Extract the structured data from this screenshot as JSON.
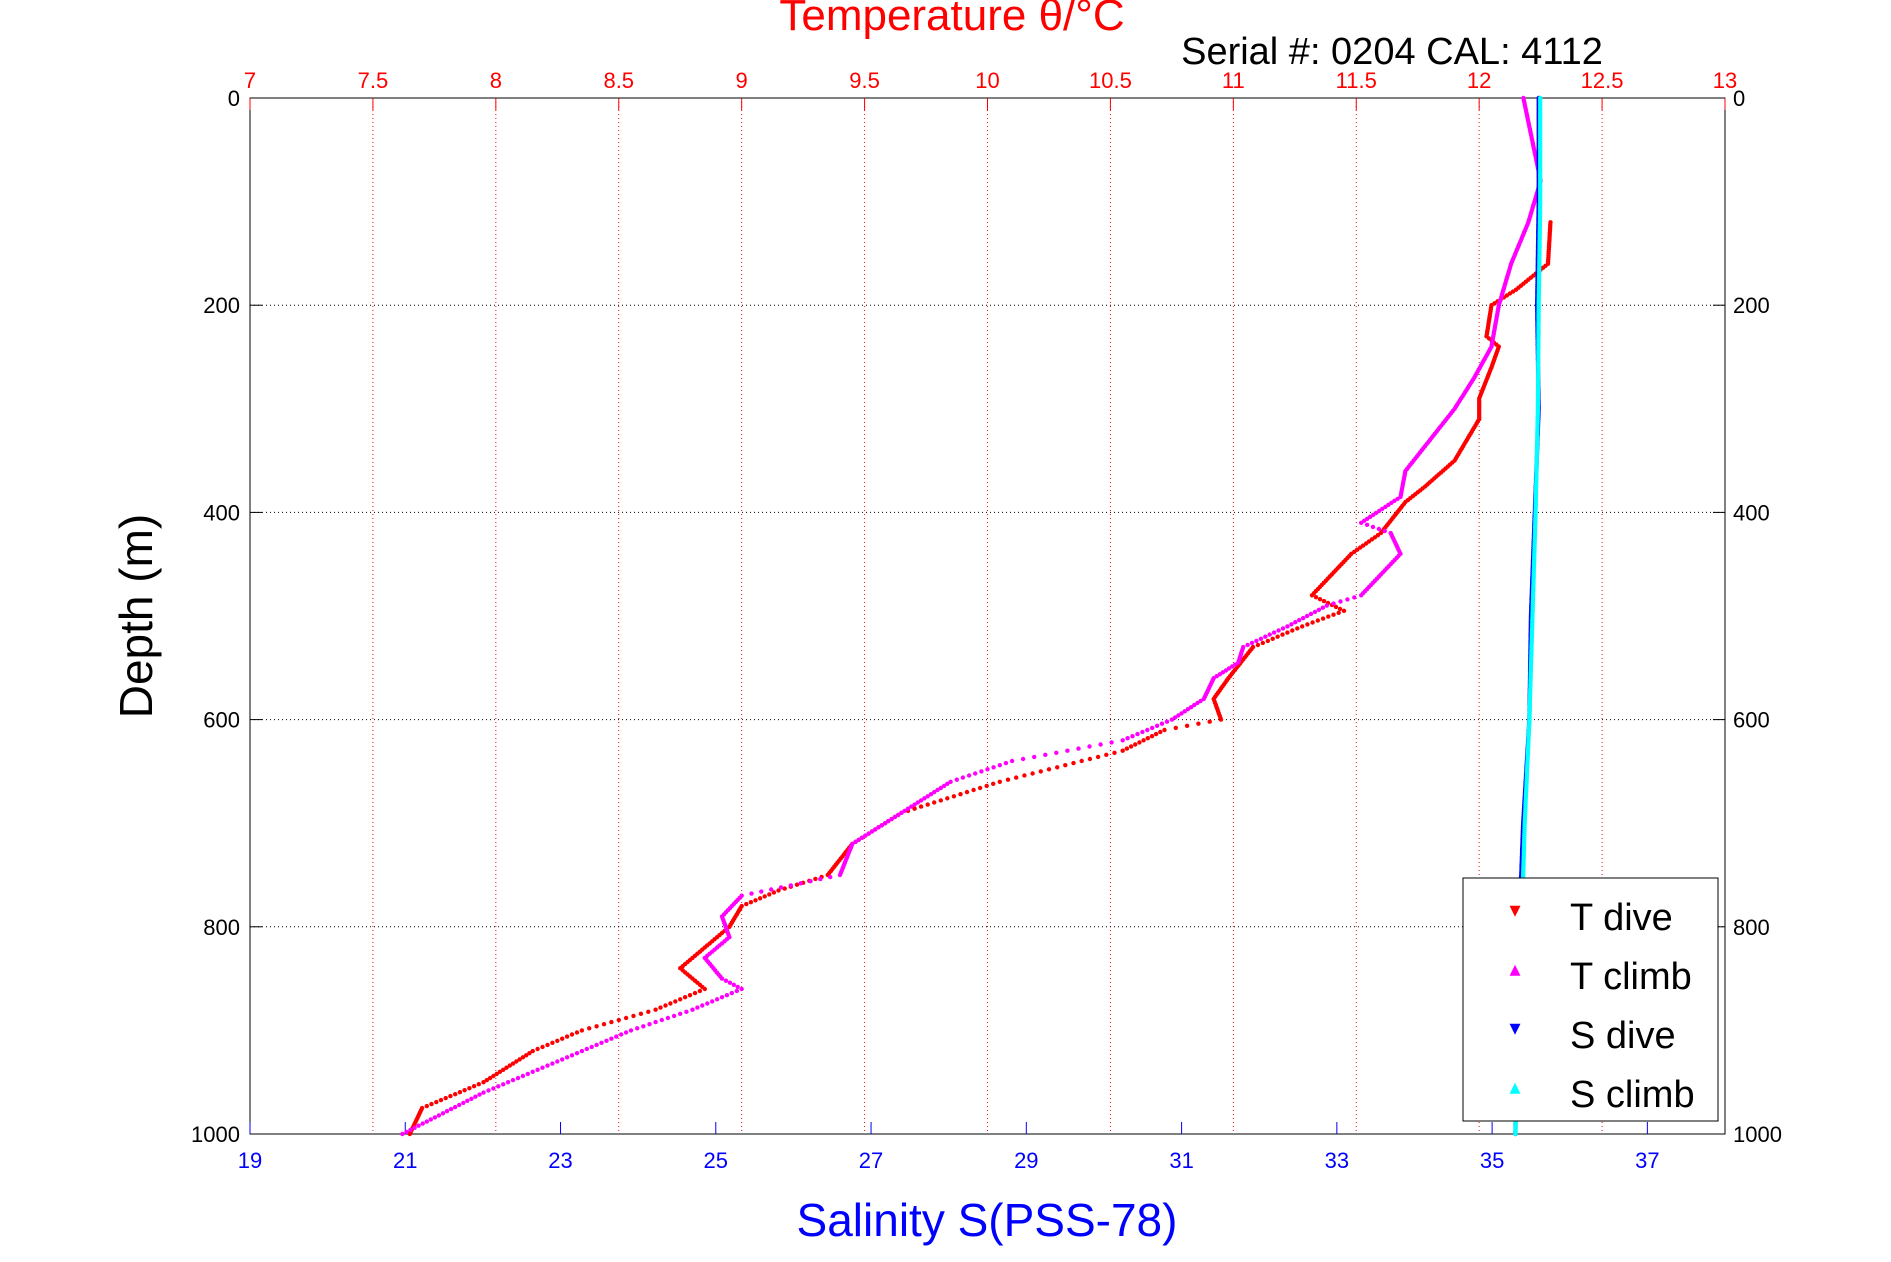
{
  "chart_data": {
    "type": "scatter",
    "title": "Temperature θ/°C",
    "subtitle": "Serial #: 0204  CAL: 4112",
    "xlabel": "Salinity S(PSS-78)",
    "ylabel": "Depth (m)",
    "temperature_axis": {
      "range": [
        7,
        13
      ],
      "tick_labels": [
        "7",
        "7.5",
        "8",
        "8.5",
        "9",
        "9.5",
        "10",
        "10.5",
        "11",
        "11.5",
        "12",
        "12.5",
        "13"
      ],
      "color": "#ff0000",
      "grid": true
    },
    "salinity_axis": {
      "range": [
        19,
        38
      ],
      "tick_labels": [
        "19",
        "21",
        "23",
        "25",
        "27",
        "29",
        "31",
        "33",
        "35",
        "37"
      ],
      "color": "#0000ff"
    },
    "depth_axis": {
      "range": [
        0,
        1000
      ],
      "reversed": true,
      "tick_labels": [
        "0",
        "200",
        "400",
        "600",
        "800",
        "1000"
      ],
      "grid": true
    },
    "legend": {
      "placement": "bottom-right",
      "entries": [
        "T dive",
        "T climb",
        "S dive",
        "S climb"
      ]
    },
    "series": [
      {
        "name": "T dive",
        "axis": "temperature",
        "color": "#ff0000",
        "depth": [
          120,
          160,
          185,
          200,
          230,
          240,
          260,
          290,
          310,
          350,
          375,
          390,
          405,
          420,
          440,
          460,
          480,
          495,
          510,
          530,
          560,
          580,
          600,
          610,
          630,
          660,
          690,
          720,
          750,
          765,
          780,
          800,
          820,
          840,
          860,
          880,
          900,
          920,
          950,
          975,
          1000
        ],
        "values": [
          12.29,
          12.28,
          12.15,
          12.05,
          12.03,
          12.08,
          12.05,
          12.0,
          12.0,
          11.9,
          11.78,
          11.7,
          11.65,
          11.6,
          11.48,
          11.4,
          11.32,
          11.45,
          11.28,
          11.08,
          10.98,
          10.92,
          10.95,
          10.72,
          10.55,
          10.05,
          9.65,
          9.45,
          9.35,
          9.15,
          9.0,
          8.95,
          8.85,
          8.75,
          8.85,
          8.65,
          8.35,
          8.15,
          7.95,
          7.7,
          7.65
        ]
      },
      {
        "name": "T climb",
        "axis": "temperature",
        "color": "#ff00ff",
        "depth": [
          0,
          80,
          120,
          160,
          200,
          240,
          270,
          300,
          330,
          360,
          385,
          410,
          420,
          440,
          460,
          480,
          490,
          510,
          530,
          545,
          560,
          580,
          600,
          620,
          640,
          660,
          690,
          720,
          750,
          770,
          790,
          810,
          830,
          850,
          860,
          880,
          900,
          930,
          960,
          1000
        ],
        "values": [
          12.18,
          12.25,
          12.2,
          12.13,
          12.08,
          12.05,
          11.98,
          11.9,
          11.8,
          11.7,
          11.68,
          11.52,
          11.64,
          11.68,
          11.6,
          11.52,
          11.38,
          11.22,
          11.04,
          11.02,
          10.92,
          10.88,
          10.75,
          10.55,
          10.1,
          9.85,
          9.65,
          9.45,
          9.4,
          9.0,
          8.92,
          8.95,
          8.85,
          8.92,
          9.0,
          8.8,
          8.55,
          8.25,
          7.95,
          7.62
        ]
      },
      {
        "name": "S dive",
        "axis": "salinity",
        "color": "#0000ff",
        "depth": [
          0,
          100,
          200,
          300,
          400,
          500,
          600,
          700,
          800,
          900,
          1000
        ],
        "values": [
          35.6,
          35.6,
          35.58,
          35.6,
          35.55,
          35.5,
          35.48,
          35.4,
          35.35,
          35.32,
          35.3
        ]
      },
      {
        "name": "S climb",
        "axis": "salinity",
        "color": "#00ffff",
        "depth": [
          0,
          100,
          200,
          300,
          400,
          500,
          600,
          700,
          800,
          900,
          1000
        ],
        "values": [
          35.62,
          35.62,
          35.6,
          35.59,
          35.56,
          35.52,
          35.48,
          35.42,
          35.38,
          35.33,
          35.3
        ]
      }
    ]
  }
}
